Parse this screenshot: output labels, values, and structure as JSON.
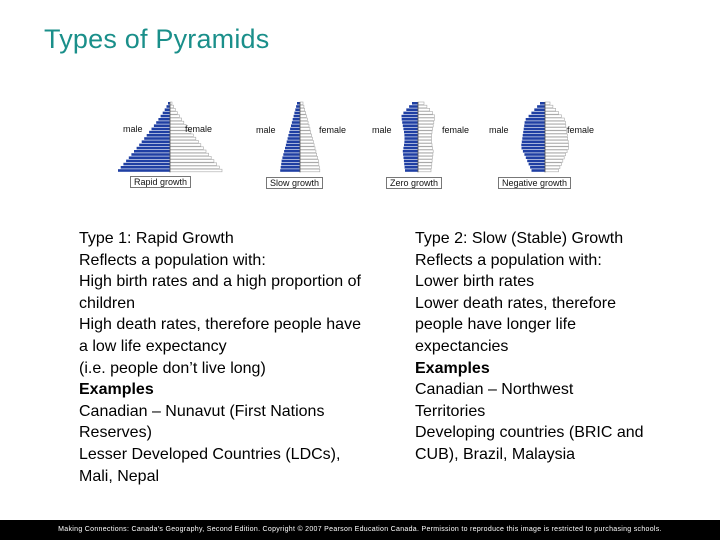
{
  "slide": {
    "title": "Types of Pyramids"
  },
  "pyramids": [
    {
      "male": "male",
      "female": "female",
      "caption": "Rapid growth"
    },
    {
      "male": "male",
      "female": "female",
      "caption": "Slow growth"
    },
    {
      "male": "male",
      "female": "female",
      "caption": "Zero growth"
    },
    {
      "male": "male",
      "female": "female",
      "caption": "Negative growth"
    }
  ],
  "colors": {
    "title": "#1a8f8a",
    "male": "#1f3fa3",
    "female": "#a9a9a9"
  },
  "left_column": [
    {
      "text": "Type 1: Rapid Growth",
      "bold": false
    },
    {
      "text": "Reflects a population with:",
      "bold": false
    },
    {
      "text": "High birth rates and a high proportion of",
      "bold": false
    },
    {
      "text": "children",
      "bold": false
    },
    {
      "text": "High death rates, therefore people have",
      "bold": false
    },
    {
      "text": "a low life expectancy",
      "bold": false
    },
    {
      "text": "(i.e. people don’t live long)",
      "bold": false
    },
    {
      "text": "Examples",
      "bold": true
    },
    {
      "text": "Canadian – Nunavut (First Nations",
      "bold": false
    },
    {
      "text": "Reserves)",
      "bold": false
    },
    {
      "text": "Lesser Developed Countries (LDCs),",
      "bold": false
    },
    {
      "text": "Mali, Nepal",
      "bold": false
    }
  ],
  "right_column": [
    {
      "text": "Type 2: Slow (Stable) Growth",
      "bold": false
    },
    {
      "text": "Reflects a population with:",
      "bold": false
    },
    {
      "text": "Lower birth rates",
      "bold": false
    },
    {
      "text": "Lower death rates, therefore",
      "bold": false
    },
    {
      "text": "people have longer life",
      "bold": false
    },
    {
      "text": "expectancies",
      "bold": false
    },
    {
      "text": "Examples",
      "bold": true
    },
    {
      "text": "Canadian – Northwest",
      "bold": false
    },
    {
      "text": "Territories",
      "bold": false
    },
    {
      "text": "Developing countries (BRIC and",
      "bold": false
    },
    {
      "text": "CUB), Brazil, Malaysia",
      "bold": false
    }
  ],
  "footer": {
    "text": "Making Connections: Canada's Geography, Second Edition. Copyright © 2007 Pearson Education Canada. Permission to reproduce this image is restricted to purchasing schools."
  }
}
